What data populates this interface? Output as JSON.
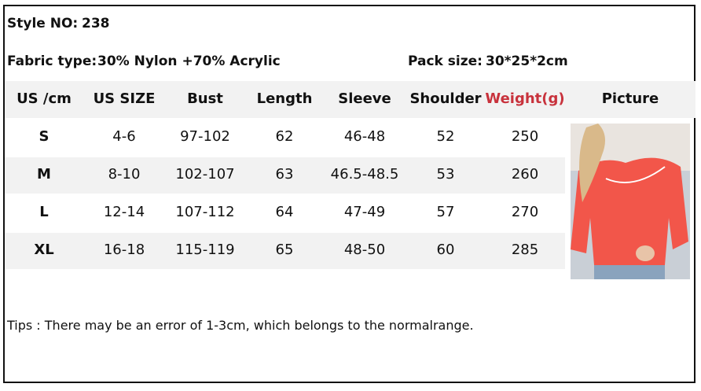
{
  "header": {
    "style_label": "Style NO:",
    "style_value": "238",
    "fabric_label": "Fabric type:",
    "fabric_value": "30% Nylon +70% Acrylic",
    "pack_label": "Pack size:",
    "pack_value": "30*25*2cm"
  },
  "table": {
    "columns": [
      "US /cm",
      "US SIZE",
      "Bust",
      "Length",
      "Sleeve",
      "Shoulder",
      "Weight(g)",
      "Picture"
    ],
    "rows": [
      [
        "S",
        "4-6",
        "97-102",
        "62",
        "46-48",
        "52",
        "250"
      ],
      [
        "M",
        "8-10",
        "102-107",
        "63",
        "46.5-48.5",
        "53",
        "260"
      ],
      [
        "L",
        "12-14",
        "107-112",
        "64",
        "47-49",
        "57",
        "270"
      ],
      [
        "XL",
        "16-18",
        "115-119",
        "65",
        "48-50",
        "60",
        "285"
      ]
    ]
  },
  "tips": "Tips : There may be an error of 1-3cm, which belongs to the normalrange."
}
